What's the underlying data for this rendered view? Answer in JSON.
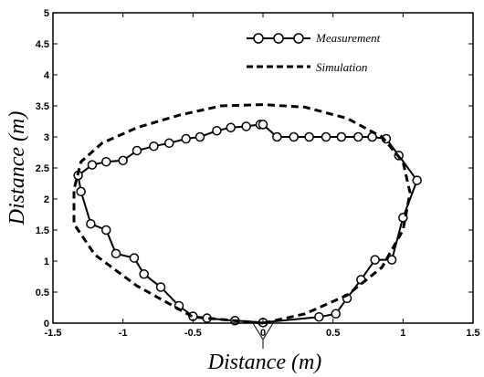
{
  "chart_data": {
    "type": "line",
    "title": "",
    "xlabel": "Distance (m)",
    "ylabel": "Distance (m)",
    "xlim": [
      -1.5,
      1.5
    ],
    "ylim": [
      0,
      5
    ],
    "xticks": [
      -1.5,
      -1,
      -0.5,
      0,
      0.5,
      1,
      1.5
    ],
    "xtick_labels": [
      "-1.5",
      "-1",
      "-0.5",
      "0",
      "0.5",
      "1",
      "1.5"
    ],
    "yticks": [
      0,
      0.5,
      1,
      1.5,
      2,
      2.5,
      3,
      3.5,
      4,
      4.5,
      5
    ],
    "ytick_labels": [
      "0",
      "0.5",
      "1",
      "1.5",
      "2",
      "2.5",
      "3",
      "3.5",
      "4",
      "4.5",
      "5"
    ],
    "grid": false,
    "legend_position": "top-right",
    "series": [
      {
        "name": "Measurement",
        "style": "solid line with circle markers",
        "color": "#000000",
        "x": [
          0.0,
          -0.2,
          -0.4,
          -0.5,
          -0.6,
          -0.73,
          -0.85,
          -0.92,
          -1.05,
          -1.12,
          -1.23,
          -1.3,
          -1.32,
          -1.22,
          -1.12,
          -1.0,
          -0.9,
          -0.78,
          -0.67,
          -0.55,
          -0.45,
          -0.33,
          -0.23,
          -0.12,
          -0.02,
          0.0,
          0.1,
          0.22,
          0.33,
          0.45,
          0.56,
          0.68,
          0.78,
          0.88,
          0.97,
          1.1,
          1.0,
          0.92,
          0.8,
          0.7,
          0.6,
          0.52,
          0.4,
          0.0
        ],
        "y": [
          0.01,
          0.04,
          0.08,
          0.11,
          0.28,
          0.58,
          0.79,
          1.05,
          1.12,
          1.5,
          1.6,
          2.12,
          2.38,
          2.55,
          2.6,
          2.62,
          2.78,
          2.85,
          2.9,
          2.97,
          3.0,
          3.1,
          3.15,
          3.17,
          3.2,
          3.2,
          3.0,
          3.0,
          3.0,
          3.0,
          3.0,
          3.0,
          3.0,
          2.97,
          2.7,
          2.3,
          1.7,
          1.02,
          1.02,
          0.7,
          0.4,
          0.15,
          0.1,
          0.01
        ]
      },
      {
        "name": "Simulation",
        "style": "dashed line",
        "color": "#000000",
        "x": [
          0.0,
          -0.5,
          -0.9,
          -1.2,
          -1.35,
          -1.35,
          -1.3,
          -1.15,
          -0.9,
          -0.6,
          -0.3,
          0.0,
          0.3,
          0.6,
          0.85,
          1.0,
          1.05,
          1.0,
          0.85,
          0.6,
          0.3,
          0.0
        ],
        "y": [
          0.0,
          0.1,
          0.6,
          1.1,
          1.6,
          2.15,
          2.6,
          2.9,
          3.15,
          3.35,
          3.5,
          3.52,
          3.48,
          3.3,
          3.0,
          2.6,
          2.1,
          1.5,
          0.9,
          0.45,
          0.15,
          0.0
        ]
      }
    ]
  }
}
